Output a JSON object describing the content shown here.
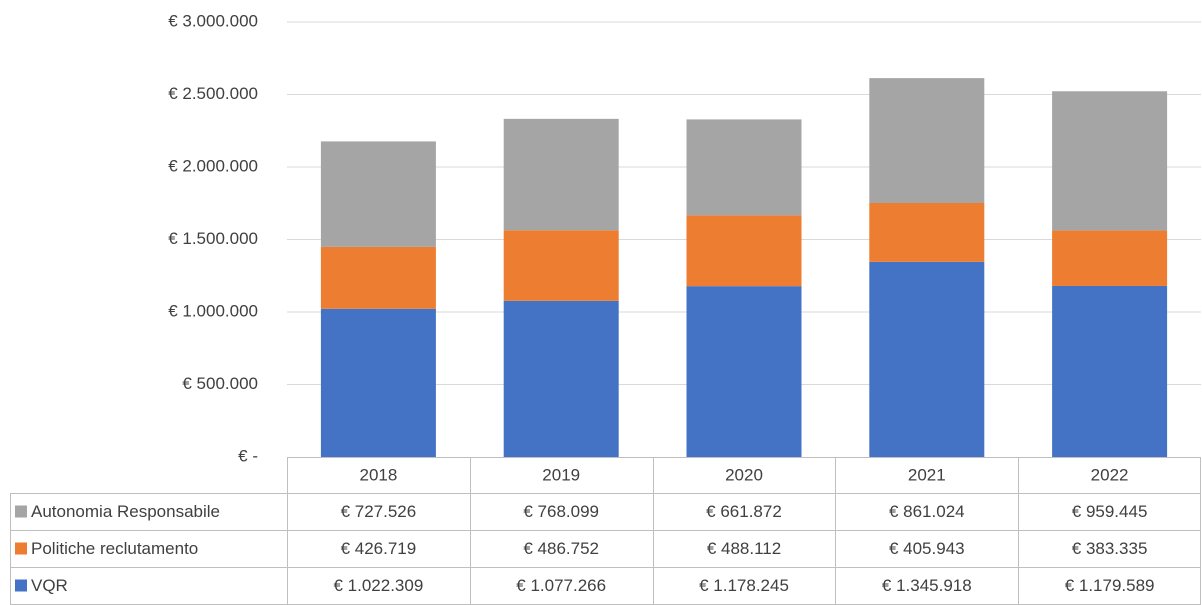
{
  "chart_data": {
    "type": "stacked_bar",
    "categories": [
      "2018",
      "2019",
      "2020",
      "2021",
      "2022"
    ],
    "series": [
      {
        "name": "Autonomia Responsabile",
        "color": "#a5a5a5",
        "values": [
          727526,
          768099,
          661872,
          861024,
          959445
        ],
        "value_labels": [
          "€ 727.526",
          "€ 768.099",
          "€ 661.872",
          "€ 861.024",
          "€ 959.445"
        ]
      },
      {
        "name": "Politiche reclutamento",
        "color": "#ed7d31",
        "values": [
          426719,
          486752,
          488112,
          405943,
          383335
        ],
        "value_labels": [
          "€ 426.719",
          "€ 486.752",
          "€ 488.112",
          "€ 405.943",
          "€ 383.335"
        ]
      },
      {
        "name": "VQR",
        "color": "#4472c4",
        "values": [
          1022309,
          1077266,
          1178245,
          1345918,
          1179589
        ],
        "value_labels": [
          "€ 1.022.309",
          "€ 1.077.266",
          "€ 1.178.245",
          "€ 1.345.918",
          "€ 1.179.589"
        ]
      }
    ],
    "ylim": [
      0,
      3000000
    ],
    "yticks": [
      {
        "value": 0,
        "label": "€ -"
      },
      {
        "value": 500000,
        "label": "€ 500.000"
      },
      {
        "value": 1000000,
        "label": "€ 1.000.000"
      },
      {
        "value": 1500000,
        "label": "€ 1.500.000"
      },
      {
        "value": 2000000,
        "label": "€ 2.000.000"
      },
      {
        "value": 2500000,
        "label": "€ 2.500.000"
      },
      {
        "value": 3000000,
        "label": "€ 3.000.000"
      }
    ],
    "grid": true
  }
}
